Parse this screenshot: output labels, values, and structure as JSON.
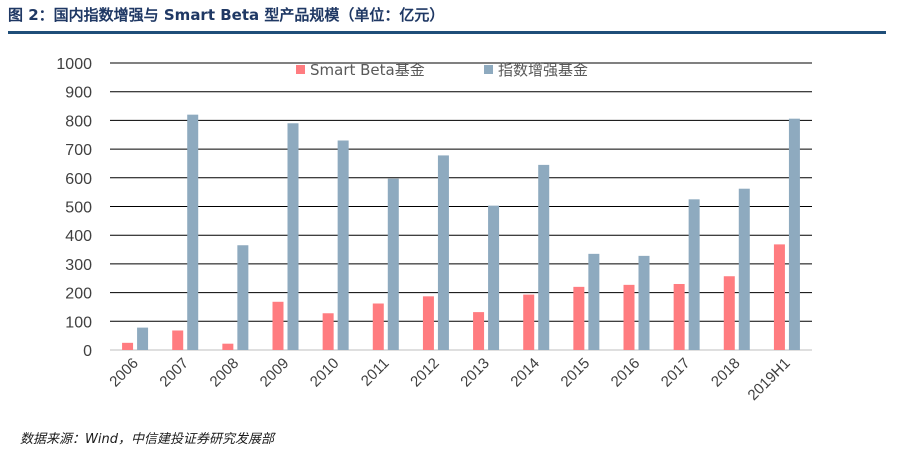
{
  "figure": {
    "title": "图 2：国内指数增强与 Smart Beta 型产品规模（单位：亿元）",
    "source": "数据来源：Wind，中信建投证券研究发展部"
  },
  "chart_data": {
    "type": "bar",
    "categories": [
      "2006",
      "2007",
      "2008",
      "2009",
      "2010",
      "2011",
      "2012",
      "2013",
      "2014",
      "2015",
      "2016",
      "2017",
      "2018",
      "2019H1"
    ],
    "series": [
      {
        "name": "Smart Beta基金",
        "color": "#ff7c80",
        "values": [
          25,
          68,
          22,
          168,
          128,
          162,
          187,
          132,
          193,
          220,
          227,
          230,
          257,
          368
        ]
      },
      {
        "name": "指数增强基金",
        "color": "#8eaabf",
        "values": [
          78,
          820,
          365,
          790,
          730,
          597,
          678,
          503,
          645,
          335,
          328,
          525,
          562,
          806
        ]
      }
    ],
    "ylim": [
      0,
      1000
    ],
    "yticks": [
      0,
      100,
      200,
      300,
      400,
      500,
      600,
      700,
      800,
      900,
      1000
    ],
    "grid": true,
    "legend_position": "top-center"
  }
}
